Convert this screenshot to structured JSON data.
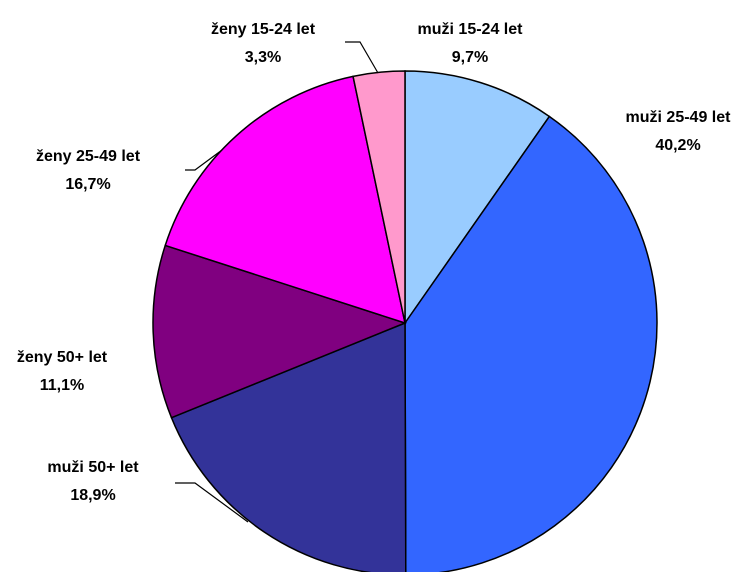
{
  "chart_data": {
    "type": "pie",
    "categories": [
      "muži 15-24 let",
      "muži 25-49 let",
      "muži 50+ let",
      "ženy 50+ let",
      "ženy 25-49 let",
      "ženy 15-24 let"
    ],
    "values": [
      9.7,
      40.2,
      18.9,
      11.1,
      16.7,
      3.3
    ],
    "value_labels": [
      "9,7%",
      "40,2%",
      "18,9%",
      "11,1%",
      "16,7%",
      "3,3%"
    ],
    "colors": [
      "#99ccff",
      "#3366ff",
      "#333399",
      "#800080",
      "#ff00ff",
      "#ff99cc"
    ]
  }
}
